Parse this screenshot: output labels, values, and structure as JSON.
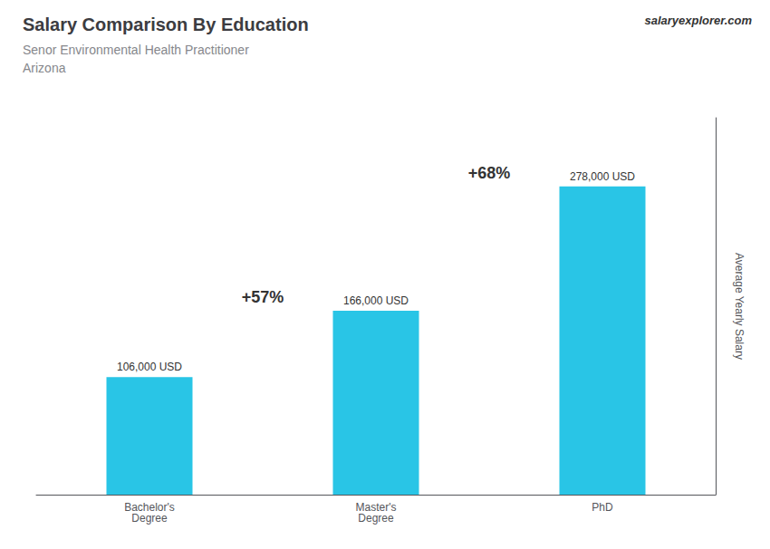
{
  "chart_data": {
    "type": "bar",
    "title": "Salary Comparison By Education",
    "subtitle": [
      "Senor Environmental Health Practitioner",
      "Arizona"
    ],
    "ylabel": "Average Yearly Salary",
    "categories": [
      "Bachelor's\nDegree",
      "Master's\nDegree",
      "PhD"
    ],
    "values": [
      106000,
      166000,
      278000
    ],
    "value_labels": [
      "106,000 USD",
      "166,000 USD",
      "278,000 USD"
    ],
    "data_labels": true,
    "color": "#29c5e6",
    "ylim": [
      0,
      340000
    ],
    "tick_labels": "x",
    "grid": false,
    "annotations": [
      "+57%",
      "+68%",
      "salaryexplorer.com"
    ]
  }
}
